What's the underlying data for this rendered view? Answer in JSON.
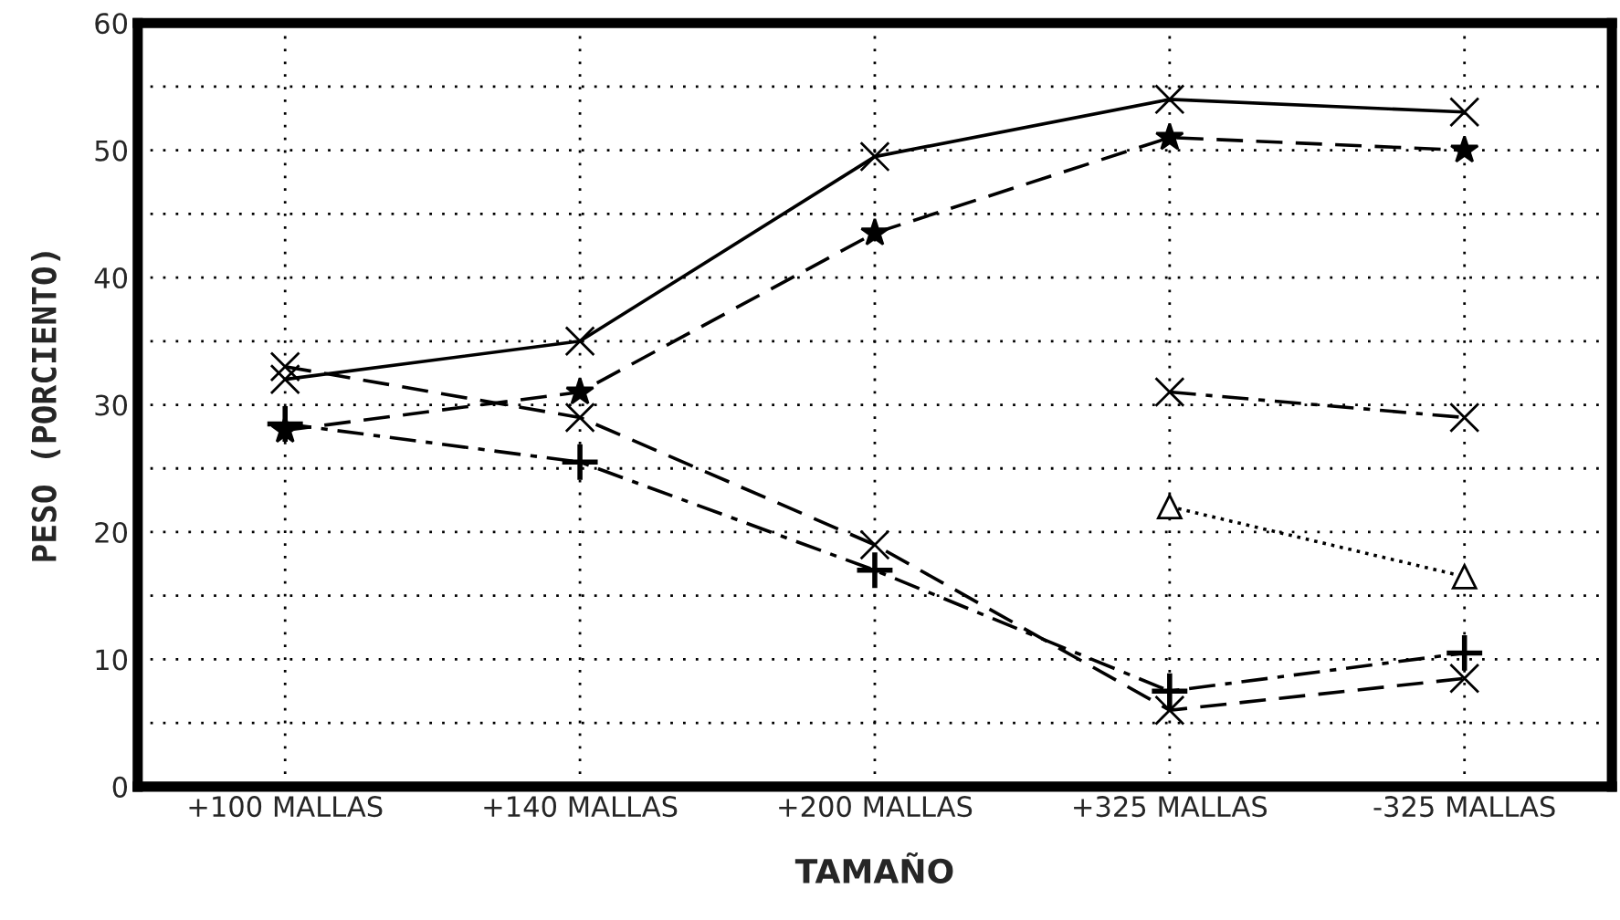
{
  "chart_data": {
    "type": "line",
    "xlabel": "TAMAÑO",
    "ylabel": "PESO (PORCIENTO)",
    "categories": [
      "+100 MALLAS",
      "+140 MALLAS",
      "+200 MALLAS",
      "+325 MALLAS",
      "-325 MALLAS"
    ],
    "ylim": [
      0,
      60
    ],
    "yticks": [
      0,
      {
        "value": 5,
        "label": null
      },
      10,
      {
        "value": 15,
        "label": null
      },
      20,
      {
        "value": 25,
        "label": null
      },
      30,
      {
        "value": 35,
        "label": null
      },
      40,
      {
        "value": 45,
        "label": null
      },
      50,
      {
        "value": 55,
        "label": null
      },
      60
    ],
    "grid": true,
    "series": [
      {
        "color": "#000000",
        "marker": "cross",
        "line_style": "solid",
        "values": [
          32,
          35,
          49.5,
          54,
          53
        ]
      },
      {
        "color": "#000000",
        "marker": "star",
        "line_style": "dashed",
        "values": [
          28,
          31,
          43.5,
          51,
          50
        ]
      },
      {
        "color": "#000000",
        "marker": "cross",
        "line_style": "dashed",
        "values": [
          33,
          29,
          19,
          6,
          8.5
        ]
      },
      {
        "color": "#000000",
        "marker": "plus",
        "line_style": "dashdot",
        "values": [
          28.5,
          25.5,
          17,
          7.5,
          10.5
        ]
      },
      {
        "color": "#000000",
        "marker": "cross",
        "line_style": "dashdot",
        "values": [
          null,
          null,
          null,
          31,
          29
        ]
      },
      {
        "color": "#000000",
        "marker": "triangle",
        "line_style": "dotted",
        "values": [
          null,
          null,
          null,
          22,
          16.5
        ]
      }
    ]
  }
}
